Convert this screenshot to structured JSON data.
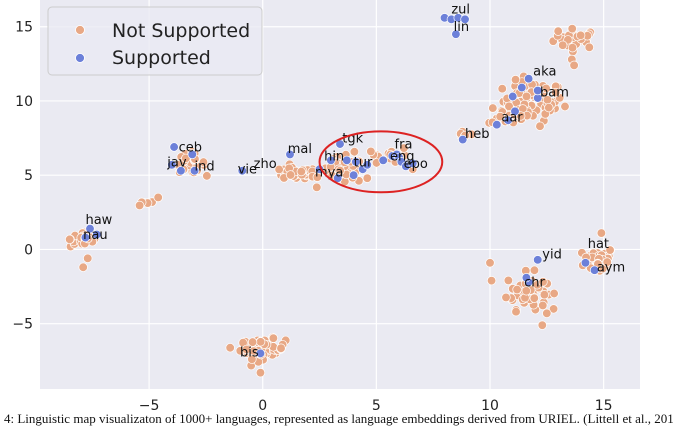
{
  "chart_data": {
    "type": "scatter",
    "xlim": [
      -9.8,
      16.6
    ],
    "ylim": [
      -9.4,
      16.8
    ],
    "xticks": [
      -5,
      0,
      5,
      10,
      15
    ],
    "yticks": [
      -5,
      0,
      5,
      10,
      15
    ],
    "tick_labels": {
      "x": [
        "−5",
        "0",
        "5",
        "10",
        "15"
      ],
      "y": [
        "−5",
        "0",
        "5",
        "10",
        "15"
      ]
    },
    "grid": true,
    "legend_placement": "top-left",
    "series": [
      {
        "name": "Not Supported",
        "color": "#e8a885",
        "clusters": [
          {
            "cx": 13.8,
            "cy": 14.2,
            "sx": 0.9,
            "sy": 0.6,
            "n": 30
          },
          {
            "cx": 11.9,
            "cy": 10.0,
            "sx": 1.2,
            "sy": 1.2,
            "n": 70
          },
          {
            "cx": 10.8,
            "cy": 9.1,
            "sx": 0.8,
            "sy": 0.7,
            "n": 20
          },
          {
            "cx": 14.8,
            "cy": -0.7,
            "sx": 0.6,
            "sy": 0.8,
            "n": 50
          },
          {
            "cx": 11.6,
            "cy": -2.8,
            "sx": 0.8,
            "sy": 1.1,
            "n": 55
          },
          {
            "cx": 0.0,
            "cy": -6.7,
            "sx": 0.9,
            "sy": 0.6,
            "n": 70
          },
          {
            "cx": -3.2,
            "cy": 5.8,
            "sx": 0.6,
            "sy": 0.6,
            "n": 30
          },
          {
            "cx": -7.8,
            "cy": 0.7,
            "sx": 0.6,
            "sy": 0.5,
            "n": 35
          },
          {
            "cx": 1.4,
            "cy": 5.1,
            "sx": 0.9,
            "sy": 0.35,
            "n": 45
          },
          {
            "cx": 3.5,
            "cy": 5.3,
            "sx": 0.9,
            "sy": 0.8,
            "n": 45
          },
          {
            "cx": -5.2,
            "cy": 3.1,
            "sx": 0.25,
            "sy": 0.25,
            "n": 6
          },
          {
            "cx": 5.6,
            "cy": 6.3,
            "sx": 1.0,
            "sy": 0.5,
            "n": 14
          },
          {
            "cx": 8.9,
            "cy": 7.9,
            "sx": 0.35,
            "sy": 0.35,
            "n": 6
          }
        ],
        "points": [
          {
            "x": -4.6,
            "y": 3.5
          },
          {
            "x": -7.9,
            "y": -1.2
          },
          {
            "x": -7.7,
            "y": -0.6
          },
          {
            "x": -0.1,
            "y": -8.3
          },
          {
            "x": 12.3,
            "y": -5.1
          },
          {
            "x": 12.5,
            "y": -4.3
          },
          {
            "x": 12.2,
            "y": 8.3
          },
          {
            "x": 13.0,
            "y": 14.7
          },
          {
            "x": 13.6,
            "y": 12.8
          },
          {
            "x": 13.7,
            "y": 12.4
          },
          {
            "x": 14.9,
            "y": 1.1
          },
          {
            "x": 10.0,
            "y": -0.9
          },
          {
            "x": 6.6,
            "y": 5.4
          },
          {
            "x": 4.6,
            "y": 4.8
          }
        ]
      },
      {
        "name": "Supported",
        "color": "#6c80d9",
        "points": [
          {
            "x": 8.0,
            "y": 15.6
          },
          {
            "x": 8.3,
            "y": 15.5
          },
          {
            "x": 8.6,
            "y": 15.6
          },
          {
            "x": 8.9,
            "y": 15.5
          },
          {
            "x": 8.5,
            "y": 14.5
          },
          {
            "x": 11.4,
            "y": 10.9
          },
          {
            "x": 11.7,
            "y": 11.5
          },
          {
            "x": 11.0,
            "y": 10.3
          },
          {
            "x": 12.1,
            "y": 10.2
          },
          {
            "x": 11.1,
            "y": 9.3
          },
          {
            "x": 10.8,
            "y": 8.7
          },
          {
            "x": 10.3,
            "y": 8.4
          },
          {
            "x": 12.1,
            "y": 10.7
          },
          {
            "x": 8.8,
            "y": 7.4
          },
          {
            "x": -3.9,
            "y": 6.9
          },
          {
            "x": -4.0,
            "y": 5.7
          },
          {
            "x": -3.1,
            "y": 6.4
          },
          {
            "x": -3.6,
            "y": 5.3
          },
          {
            "x": -3.0,
            "y": 5.3
          },
          {
            "x": -0.9,
            "y": 5.3
          },
          {
            "x": 1.2,
            "y": 6.4
          },
          {
            "x": 3.4,
            "y": 7.1
          },
          {
            "x": 3.0,
            "y": 6.0
          },
          {
            "x": 2.5,
            "y": 5.4
          },
          {
            "x": 3.7,
            "y": 6.0
          },
          {
            "x": 4.1,
            "y": 5.9
          },
          {
            "x": 4.4,
            "y": 5.4
          },
          {
            "x": 4.0,
            "y": 5.0
          },
          {
            "x": 4.6,
            "y": 5.7
          },
          {
            "x": 5.3,
            "y": 6.0
          },
          {
            "x": 5.7,
            "y": 6.3
          },
          {
            "x": 5.9,
            "y": 6.4
          },
          {
            "x": 6.0,
            "y": 6.2
          },
          {
            "x": 6.1,
            "y": 5.9
          },
          {
            "x": 6.3,
            "y": 5.6
          },
          {
            "x": 6.6,
            "y": 5.8
          },
          {
            "x": 3.3,
            "y": 4.8
          },
          {
            "x": 12.1,
            "y": -0.7
          },
          {
            "x": 11.7,
            "y": -2.2
          },
          {
            "x": 11.6,
            "y": -1.9
          },
          {
            "x": 14.6,
            "y": -1.4
          },
          {
            "x": 14.2,
            "y": -0.9
          },
          {
            "x": -7.6,
            "y": 1.4
          },
          {
            "x": -7.8,
            "y": 0.8
          },
          {
            "x": -7.3,
            "y": 1.0
          },
          {
            "x": -0.1,
            "y": -7.0
          }
        ]
      }
    ],
    "annotations": [
      {
        "text": "zul",
        "x": 8.3,
        "y": 15.9
      },
      {
        "text": "lin",
        "x": 8.4,
        "y": 14.7
      },
      {
        "text": "aka",
        "x": 11.9,
        "y": 11.7
      },
      {
        "text": "bam",
        "x": 12.2,
        "y": 10.3
      },
      {
        "text": "aar",
        "x": 10.5,
        "y": 8.6
      },
      {
        "text": "heb",
        "x": 8.9,
        "y": 7.5
      },
      {
        "text": "ceb",
        "x": -3.7,
        "y": 6.6
      },
      {
        "text": "jav",
        "x": -4.2,
        "y": 5.6
      },
      {
        "text": "ind",
        "x": -3.0,
        "y": 5.3
      },
      {
        "text": "vie",
        "x": -1.1,
        "y": 5.1
      },
      {
        "text": "zho",
        "x": -0.4,
        "y": 5.5
      },
      {
        "text": "mal",
        "x": 1.1,
        "y": 6.5
      },
      {
        "text": "tgk",
        "x": 3.5,
        "y": 7.2
      },
      {
        "text": "hin",
        "x": 2.7,
        "y": 6.0
      },
      {
        "text": "mya",
        "x": 2.3,
        "y": 4.9
      },
      {
        "text": "tur",
        "x": 4.0,
        "y": 5.6
      },
      {
        "text": "fra",
        "x": 5.8,
        "y": 6.8
      },
      {
        "text": "eng",
        "x": 5.6,
        "y": 6.0
      },
      {
        "text": "epo",
        "x": 6.2,
        "y": 5.5
      },
      {
        "text": "haw",
        "x": -7.8,
        "y": 1.7
      },
      {
        "text": "nau",
        "x": -7.9,
        "y": 0.7
      },
      {
        "text": "bis",
        "x": -1.0,
        "y": -7.2
      },
      {
        "text": "hat",
        "x": 14.3,
        "y": 0.1
      },
      {
        "text": "yid",
        "x": 12.3,
        "y": -0.6
      },
      {
        "text": "aym",
        "x": 14.7,
        "y": -1.5
      },
      {
        "text": "chr",
        "x": 11.5,
        "y": -2.5
      }
    ],
    "highlight_ellipse": {
      "cx": 5.2,
      "cy": 5.9,
      "rx": 2.7,
      "ry": 2.05,
      "color": "#dd2222"
    }
  },
  "legend": {
    "items": [
      {
        "label": "Not Supported",
        "color": "#e8a885"
      },
      {
        "label": "Supported",
        "color": "#6c80d9"
      }
    ]
  },
  "caption": {
    "text": "4: Linguistic map visualizaton of 1000+ languages, represented as language embeddings derived from URIEL. (Littell et al., 201"
  },
  "colors": {
    "plot_bg": "#eaeaf2",
    "grid": "#ffffff",
    "point_edge": "#ffffff"
  }
}
